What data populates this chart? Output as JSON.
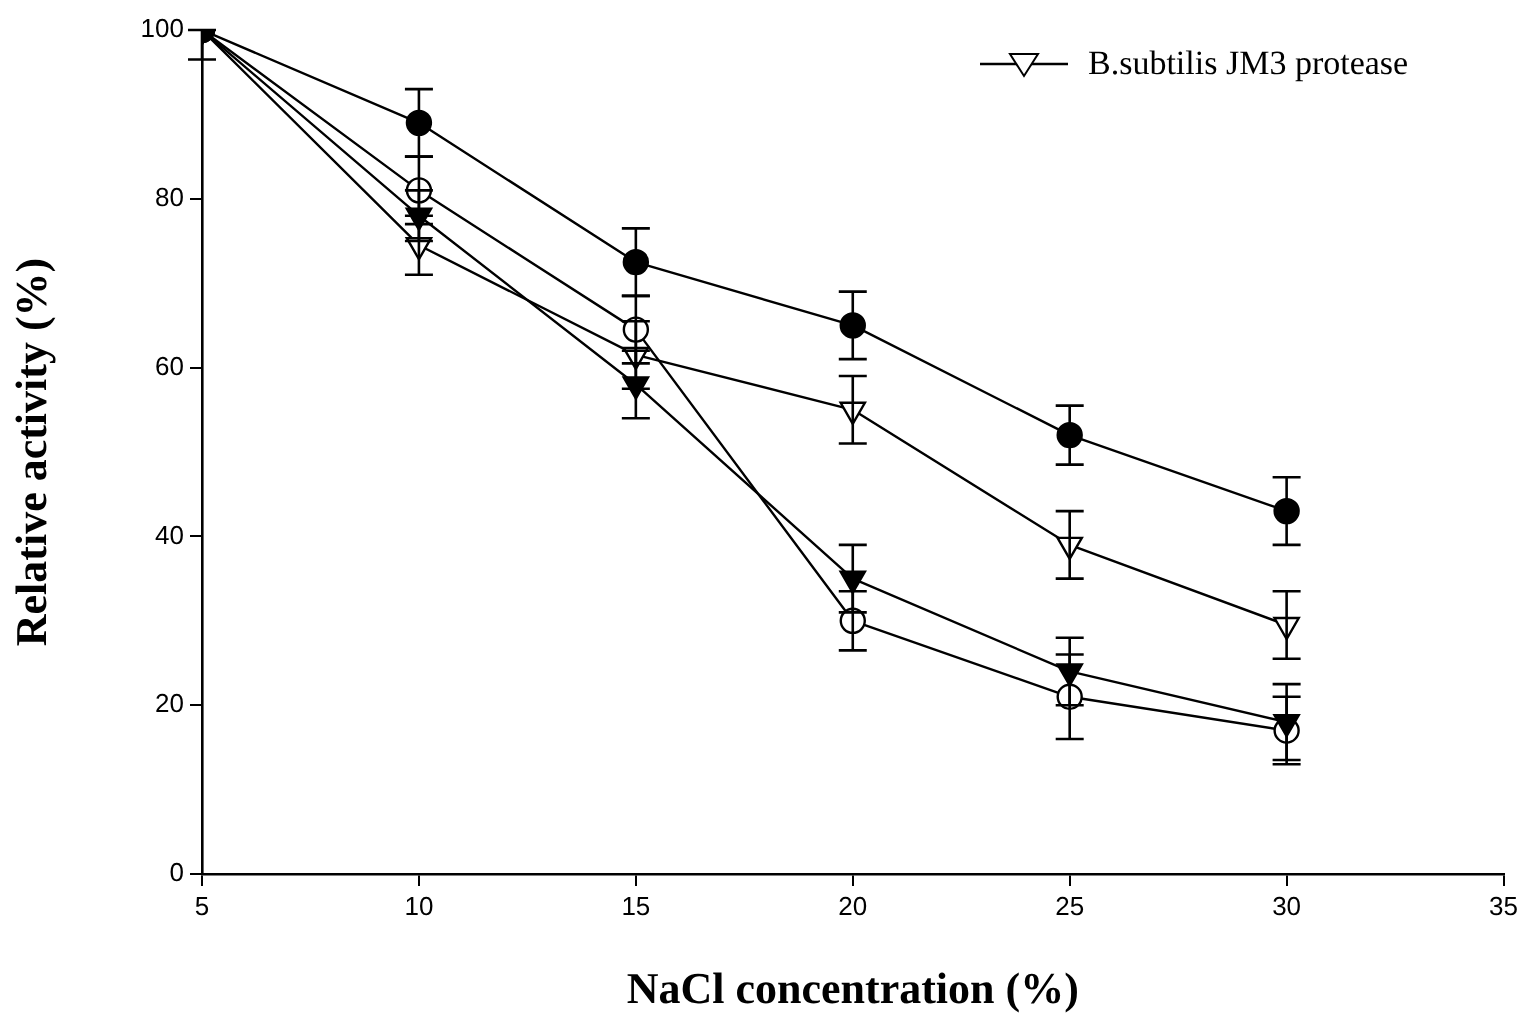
{
  "chart_data": {
    "type": "line",
    "xlabel": "NaCl concentration (%)",
    "ylabel": "Relative activity (%)",
    "x": [
      5,
      10,
      15,
      20,
      25,
      30
    ],
    "series": [
      {
        "color": "#000000",
        "marker": "circle",
        "values": [
          100,
          89,
          72.5,
          65,
          52,
          43
        ],
        "errors": [
          [
            96.5,
            100
          ],
          4,
          4,
          4,
          3.5,
          4
        ]
      },
      {
        "color": "#000000",
        "marker": "circle",
        "values": [
          100,
          81,
          64.5,
          30,
          21,
          17
        ],
        "errors": [
          null,
          4,
          4,
          3.5,
          5,
          4
        ]
      },
      {
        "color": "#000000",
        "marker": "triangle",
        "values": [
          100,
          78,
          58,
          35,
          24,
          18
        ],
        "errors": [
          null,
          3,
          4,
          4,
          4,
          4.5
        ]
      },
      {
        "name": "B.subtilis JM3 protease",
        "color": "#000000",
        "marker": "triangle",
        "values": [
          100,
          74.5,
          61.5,
          55,
          39,
          29.5
        ],
        "errors": [
          null,
          3.5,
          4,
          4,
          4,
          4
        ]
      }
    ],
    "xlim": [
      5,
      35
    ],
    "xticks": [
      5,
      10,
      15,
      20,
      25,
      30,
      35
    ],
    "ylim": [
      0,
      100
    ],
    "yticks": [
      0,
      20,
      40,
      60,
      80,
      100
    ],
    "grid": false,
    "legend": "top right",
    "line_style": "solid"
  }
}
